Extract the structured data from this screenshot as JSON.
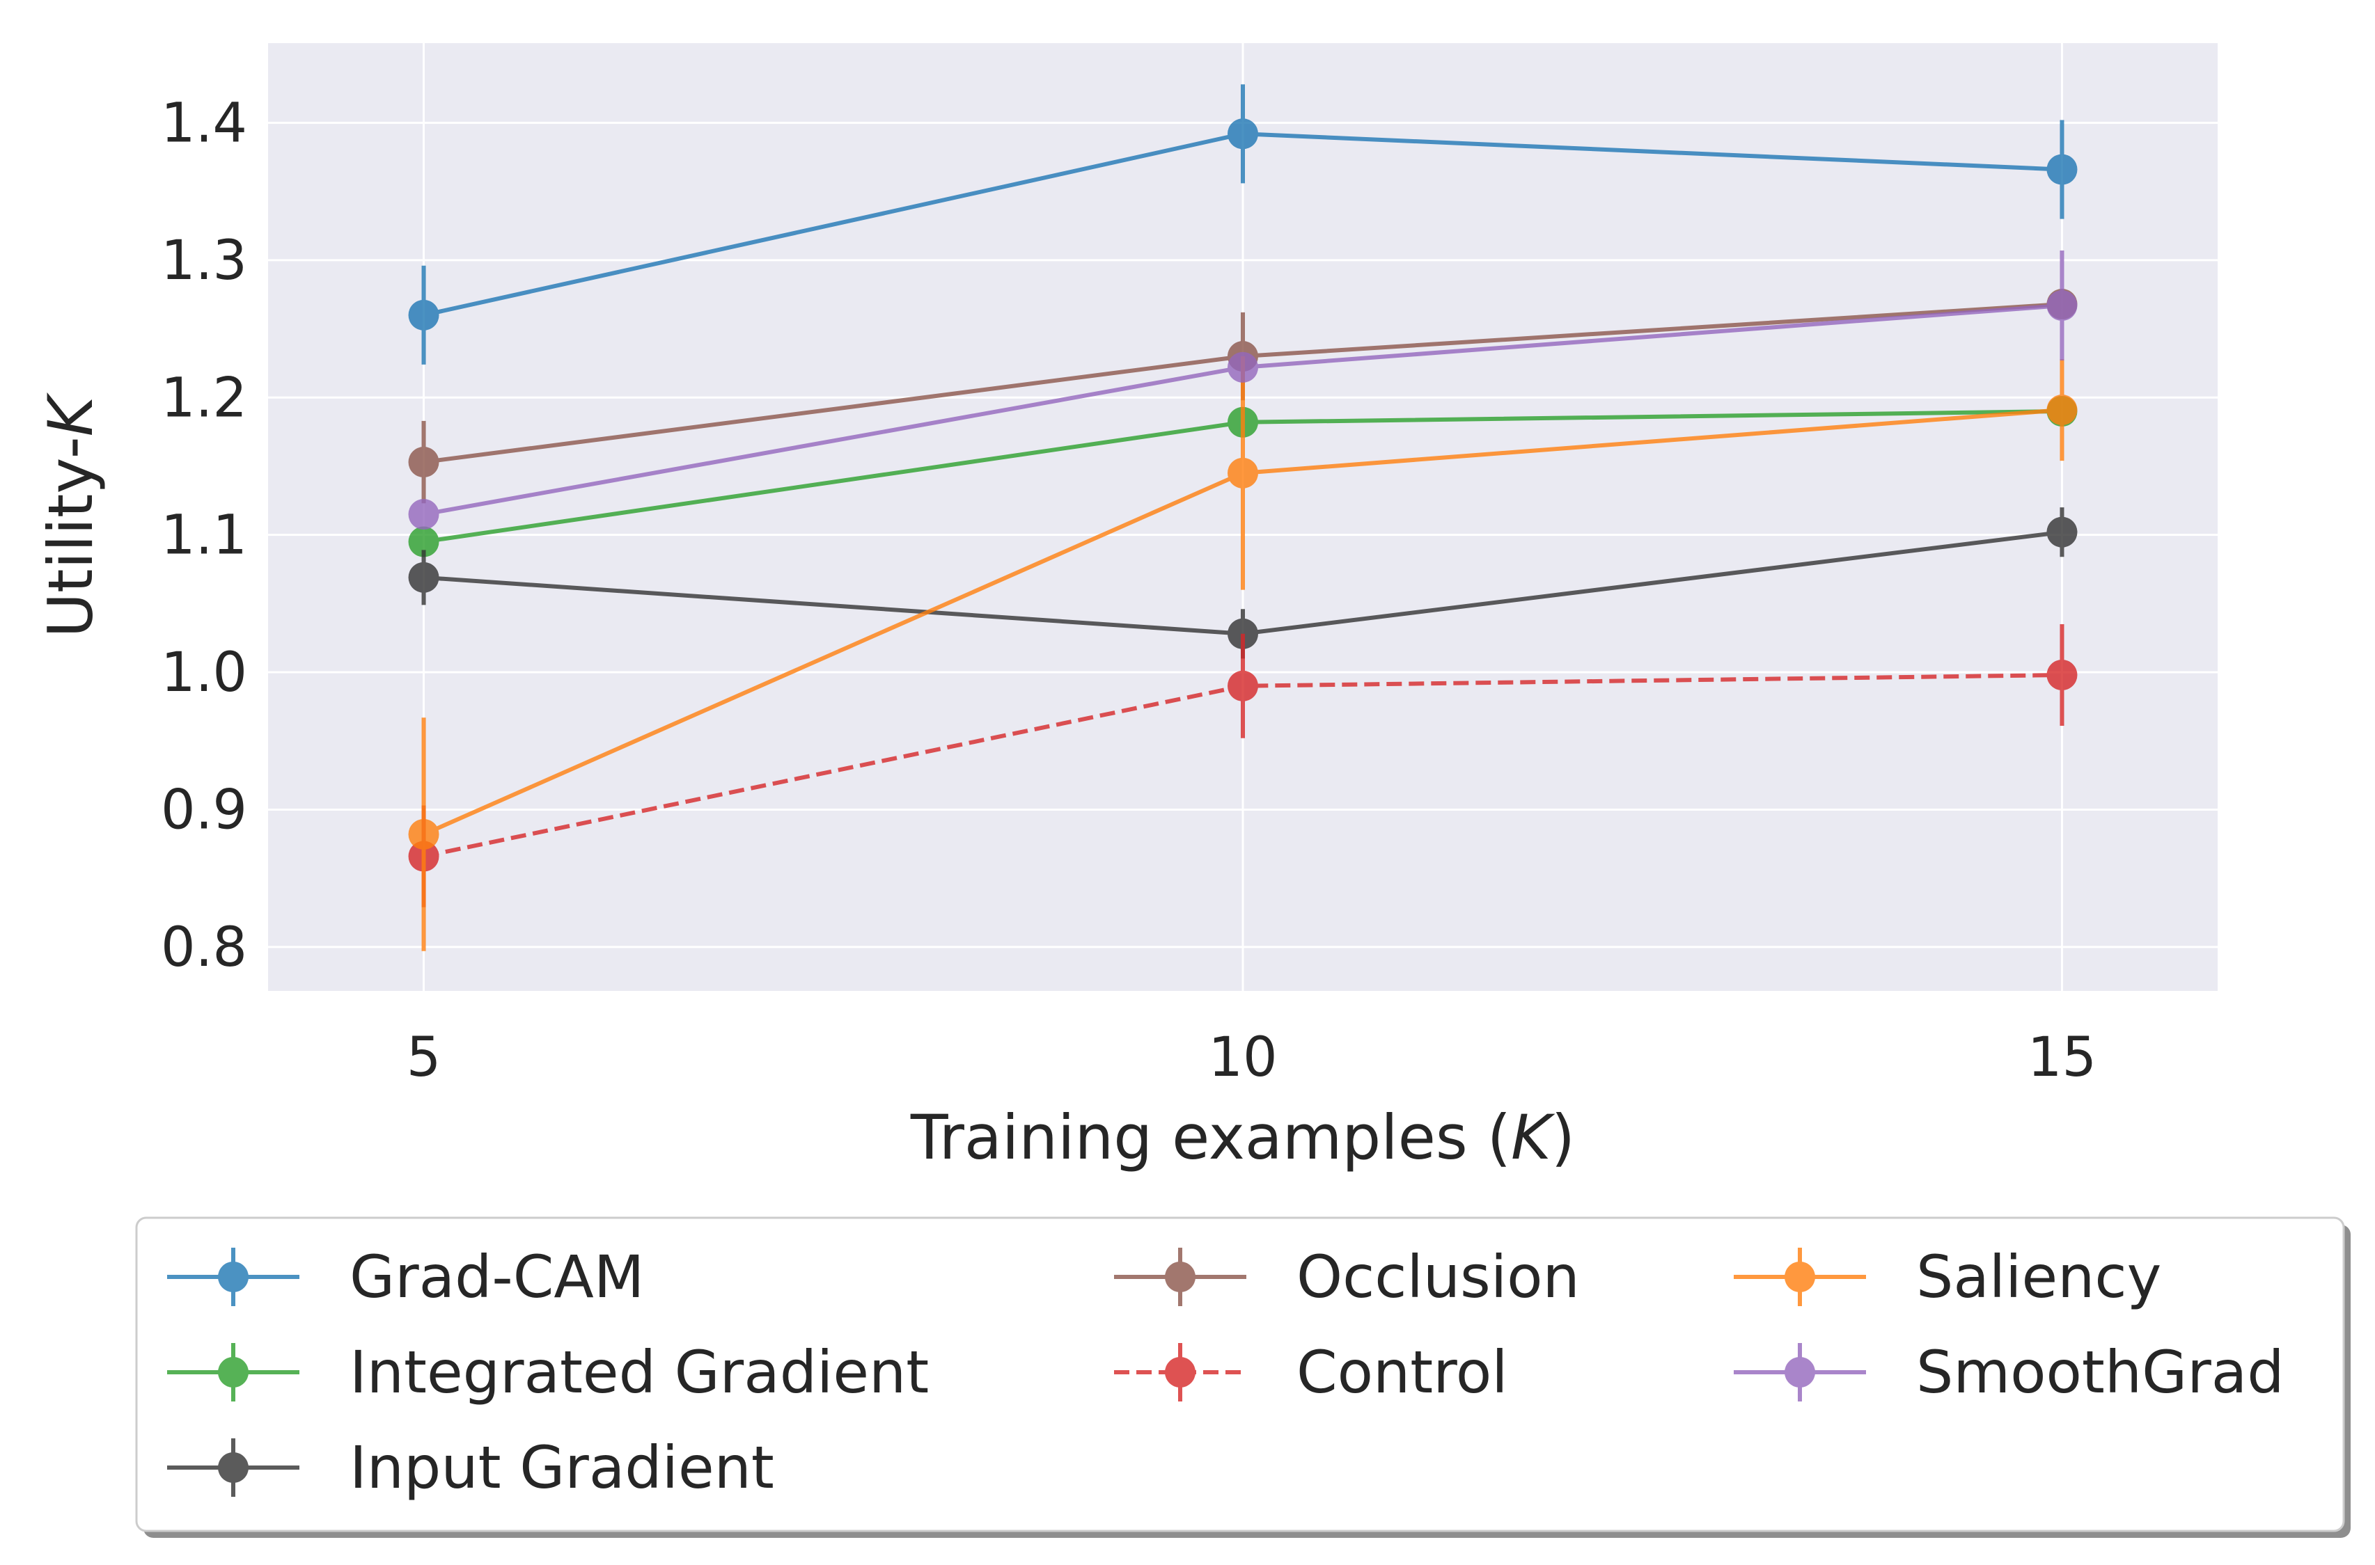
{
  "chart_data": {
    "type": "line",
    "title": "",
    "xlabel": "Training examples (K)",
    "xlabel_plain": "Training examples (",
    "xlabel_var": "K",
    "xlabel_close": ")",
    "ylabel": "Utility-K",
    "ylabel_plain": "Utility-",
    "ylabel_var": "K",
    "x": [
      5,
      10,
      15
    ],
    "xticks": [
      "5",
      "10",
      "15"
    ],
    "yticks": [
      "0.8",
      "0.9",
      "1.0",
      "1.1",
      "1.2",
      "1.3",
      "1.4"
    ],
    "ytick_values": [
      0.8,
      0.9,
      1.0,
      1.1,
      1.2,
      1.3,
      1.4
    ],
    "xlim": [
      4.05,
      15.95
    ],
    "ylim": [
      0.768,
      1.458
    ],
    "grid": true,
    "legend_position": "bottom",
    "series": [
      {
        "name": "Grad-CAM",
        "color": "#1f77b4",
        "dashed": false,
        "values": [
          1.26,
          1.392,
          1.366
        ],
        "errors": [
          0.036,
          0.036,
          0.036
        ]
      },
      {
        "name": "Integrated Gradient",
        "color": "#2ca02c",
        "dashed": false,
        "values": [
          1.095,
          1.182,
          1.19
        ],
        "errors": [
          0.0,
          0.0,
          0.0
        ]
      },
      {
        "name": "Input Gradient",
        "color": "#333333",
        "dashed": false,
        "values": [
          1.069,
          1.028,
          1.102
        ],
        "errors": [
          0.02,
          0.018,
          0.018
        ]
      },
      {
        "name": "Occlusion",
        "color": "#8c564b",
        "dashed": false,
        "values": [
          1.153,
          1.23,
          1.268
        ],
        "errors": [
          0.03,
          0.032,
          0.0
        ]
      },
      {
        "name": "Control",
        "color": "#d62728",
        "dashed": true,
        "values": [
          0.866,
          0.99,
          0.998
        ],
        "errors": [
          0.037,
          0.038,
          0.037
        ]
      },
      {
        "name": "Saliency",
        "color": "#ff7f0e",
        "dashed": false,
        "values": [
          0.882,
          1.145,
          1.191
        ],
        "errors": [
          0.085,
          0.085,
          0.037
        ]
      },
      {
        "name": "SmoothGrad",
        "color": "#9467bd",
        "dashed": false,
        "values": [
          1.115,
          1.222,
          1.267
        ],
        "errors": [
          0.0,
          0.0,
          0.04
        ]
      }
    ],
    "legend_order": [
      0,
      3,
      5,
      1,
      4,
      6,
      2
    ]
  }
}
